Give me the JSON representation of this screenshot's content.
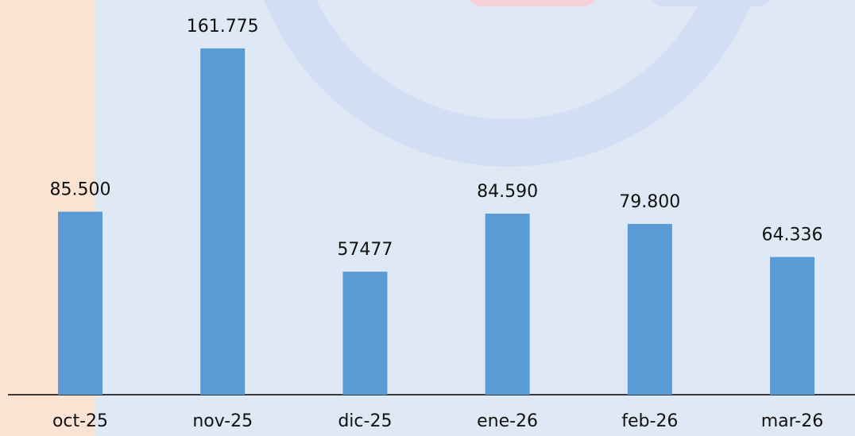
{
  "chart_data": {
    "type": "bar",
    "categories": [
      "oct-25",
      "nov-25",
      "dic-25",
      "ene-26",
      "feb-26",
      "mar-26"
    ],
    "values": [
      85500,
      161775,
      57477,
      84590,
      79800,
      64336
    ],
    "value_labels": [
      "85.500",
      "161.775",
      "57477",
      "84.590",
      "79.800",
      "64.336"
    ],
    "color": "#5b9bd5"
  }
}
